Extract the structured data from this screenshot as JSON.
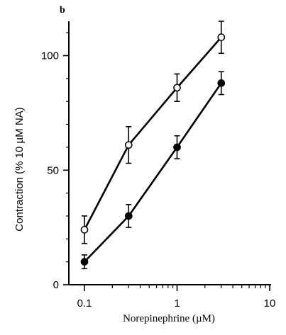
{
  "chart_data": {
    "type": "line",
    "panel_label": "b",
    "title": "",
    "xlabel": "Norepinephrine (µM)",
    "ylabel": "Contraction (%  10 µM NA)",
    "x_scale": "log",
    "xlim": [
      0.1,
      10
    ],
    "ylim": [
      0,
      115
    ],
    "x_ticks": [
      {
        "value": 0.1,
        "label": "0.1"
      },
      {
        "value": 1,
        "label": "1"
      },
      {
        "value": 10,
        "label": "10"
      }
    ],
    "y_ticks": [
      {
        "value": 0,
        "label": "0"
      },
      {
        "value": 50,
        "label": "50"
      },
      {
        "value": 100,
        "label": "100"
      }
    ],
    "grid": false,
    "legend": "none",
    "series": [
      {
        "marker": "open-circle",
        "color": "#000000",
        "x": [
          0.1,
          0.3,
          1,
          3
        ],
        "y": [
          24,
          61,
          86,
          108
        ],
        "error": [
          6,
          8,
          6,
          7
        ]
      },
      {
        "marker": "filled-circle",
        "color": "#000000",
        "x": [
          0.1,
          0.3,
          1,
          3
        ],
        "y": [
          10,
          30,
          60,
          88
        ],
        "error": [
          3,
          5,
          5,
          5
        ]
      }
    ]
  }
}
